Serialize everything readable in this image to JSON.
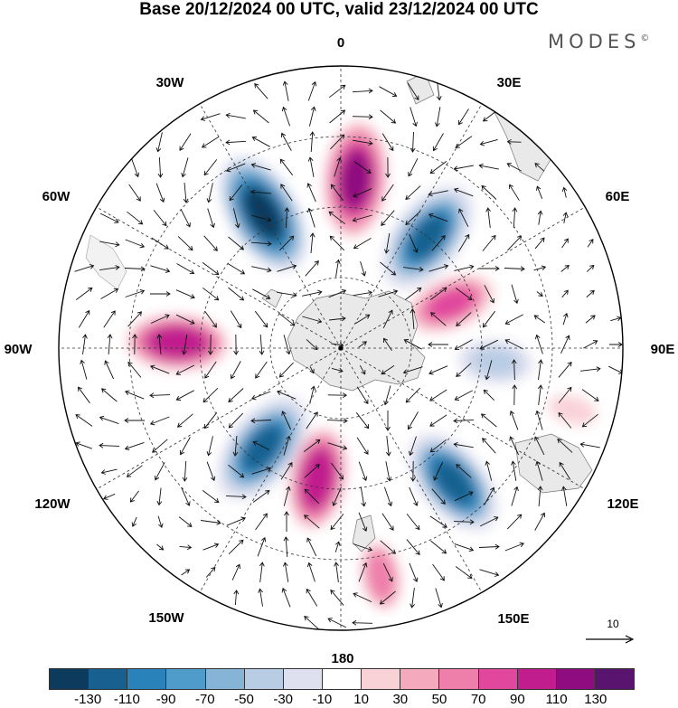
{
  "title": "Base 20/12/2024 00 UTC, valid 23/12/2024 00 UTC",
  "brand": {
    "name": "MODES",
    "mark": "©"
  },
  "longitude_labels": {
    "lon_0": "0",
    "lon_30e": "30E",
    "lon_60e": "60E",
    "lon_90e": "90E",
    "lon_120e": "120E",
    "lon_150e": "150E",
    "lon_180": "180",
    "lon_150w": "150W",
    "lon_120w": "120W",
    "lon_90w": "90W",
    "lon_60w": "60W",
    "lon_30w": "30W"
  },
  "reference_vector": {
    "label": "10"
  },
  "colorbar": {
    "colors": [
      "#0d3b5e",
      "#18608f",
      "#2a82ba",
      "#4f9ccb",
      "#85b4d6",
      "#b8cce4",
      "#dfe0ef",
      "#ffffff",
      "#f9d2d8",
      "#f4a9bd",
      "#ee7fab",
      "#e0479d",
      "#c11d8e",
      "#8e0b80",
      "#591470"
    ],
    "ticks": [
      "-130",
      "-110",
      "-90",
      "-70",
      "-50",
      "-30",
      "-10",
      "10",
      "30",
      "50",
      "70",
      "90",
      "110",
      "130"
    ]
  },
  "anomaly_centers": [
    {
      "sign": "negative",
      "lon": 330,
      "colat": 0.55,
      "value": -140
    },
    {
      "sign": "positive",
      "lon": 5,
      "colat": 0.6,
      "value": 140
    },
    {
      "sign": "negative",
      "lon": 38,
      "colat": 0.5,
      "value": -130
    },
    {
      "sign": "positive",
      "lon": 68,
      "colat": 0.42,
      "value": 100
    },
    {
      "sign": "negative",
      "lon": 95,
      "colat": 0.55,
      "value": -40
    },
    {
      "sign": "positive",
      "lon": 105,
      "colat": 0.85,
      "value": 40
    },
    {
      "sign": "negative",
      "lon": 140,
      "colat": 0.62,
      "value": -120
    },
    {
      "sign": "positive",
      "lon": 170,
      "colat": 0.82,
      "value": 60
    },
    {
      "sign": "positive",
      "lon": 190,
      "colat": 0.47,
      "value": 120
    },
    {
      "sign": "negative",
      "lon": 218,
      "colat": 0.45,
      "value": -130
    },
    {
      "sign": "positive",
      "lon": 272,
      "colat": 0.58,
      "value": 120
    }
  ]
}
